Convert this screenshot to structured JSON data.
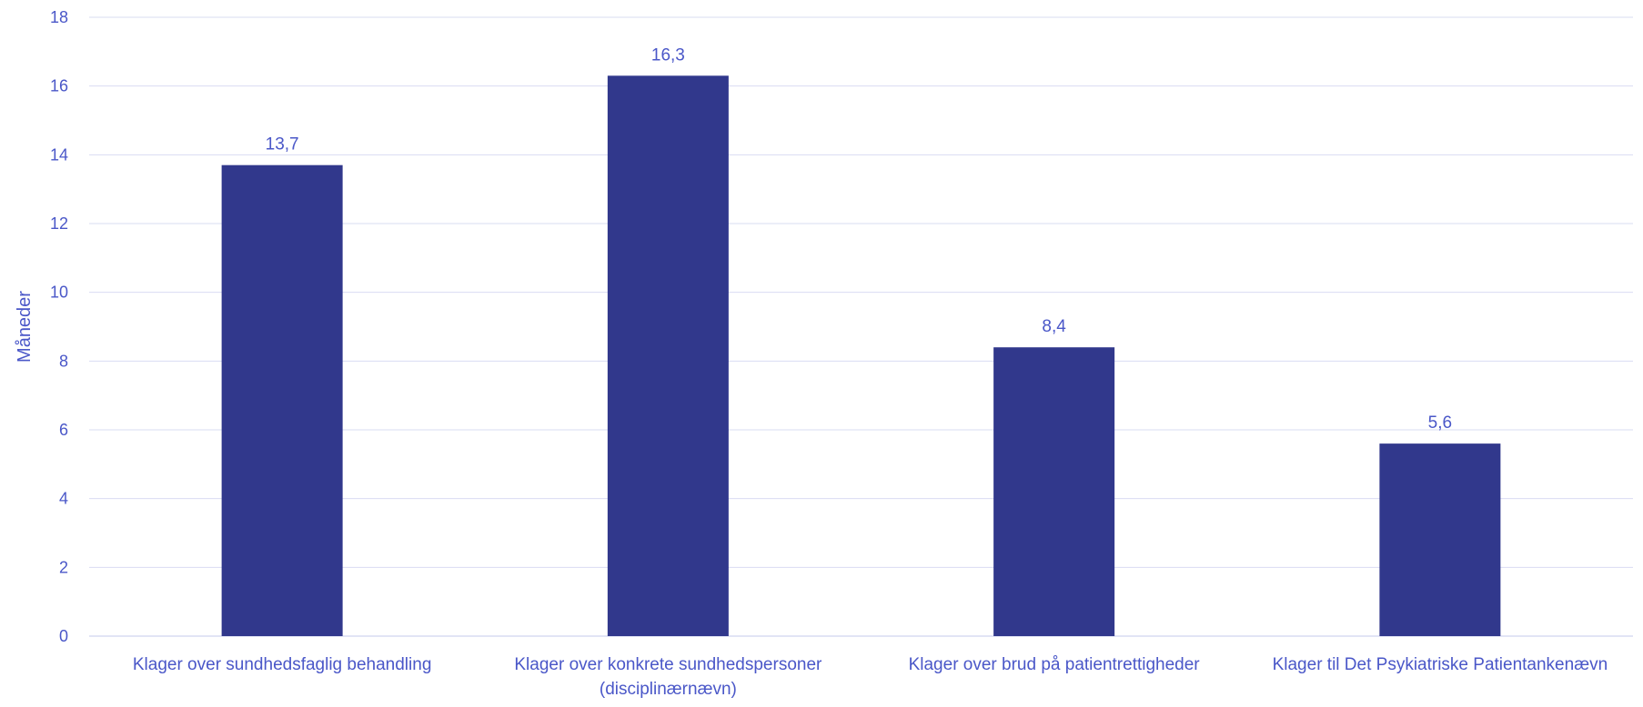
{
  "chart_data": {
    "type": "bar",
    "title": "",
    "xlabel": "",
    "ylabel": "Måneder",
    "ylim": [
      0,
      18
    ],
    "ytick_step": 2,
    "grid": true,
    "legend": "none",
    "categories": [
      [
        "Klager over sundhedsfaglig behandling"
      ],
      [
        "Klager over konkrete sundhedspersoner",
        "(disciplinærnævn)"
      ],
      [
        "Klager over brud på patientrettigheder"
      ],
      [
        "Klager til Det Psykiatriske Patientankenævn"
      ]
    ],
    "values": [
      13.7,
      16.3,
      8.4,
      5.6
    ],
    "data_labels": [
      "13,7",
      "16,3",
      "8,4",
      "5,6"
    ],
    "colors": {
      "bar": "#31388C",
      "text": "#4A57C8",
      "grid": "#D9DCF2",
      "axis": "#D9DCF2"
    }
  }
}
